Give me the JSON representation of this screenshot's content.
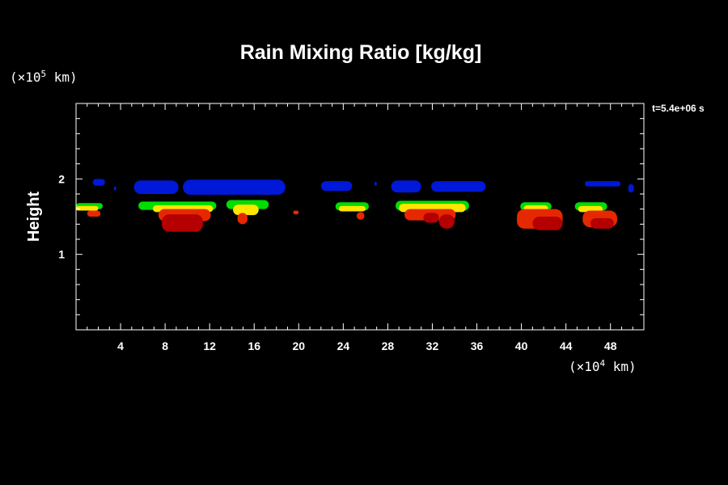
{
  "chart_data": {
    "type": "contour",
    "title": "Rain Mixing Ratio [kg/kg]",
    "ylabel": "Height",
    "x_unit": "(×10⁴ km)",
    "y_unit": "(×10⁵ km)",
    "time_label": "t=5.4e+06 s",
    "xlim": [
      0,
      51
    ],
    "ylim": [
      0,
      3
    ],
    "xticks": [
      4,
      8,
      12,
      16,
      20,
      24,
      28,
      32,
      36,
      40,
      44,
      48
    ],
    "yticks": [
      1,
      2
    ],
    "grid": false,
    "levels": [
      {
        "name": "low",
        "color": "#00dd00"
      },
      {
        "name": "mid",
        "color": "#ffe600"
      },
      {
        "name": "high",
        "color": "#e62800"
      },
      {
        "name": "max",
        "color": "#b40000"
      },
      {
        "name": "upper",
        "color": "#0018d8"
      }
    ],
    "cells": [
      {
        "level": "upper",
        "x": [
          1.5,
          2.6
        ],
        "y": [
          1.91,
          2.0
        ]
      },
      {
        "level": "upper",
        "x": [
          3.4,
          3.6
        ],
        "y": [
          1.85,
          1.9
        ]
      },
      {
        "level": "upper",
        "x": [
          5.2,
          9.2
        ],
        "y": [
          1.8,
          1.98
        ]
      },
      {
        "level": "upper",
        "x": [
          9.6,
          18.8
        ],
        "y": [
          1.79,
          1.99
        ]
      },
      {
        "level": "upper",
        "x": [
          22.0,
          24.8
        ],
        "y": [
          1.84,
          1.97
        ]
      },
      {
        "level": "upper",
        "x": [
          26.8,
          27.0
        ],
        "y": [
          1.91,
          1.96
        ]
      },
      {
        "level": "upper",
        "x": [
          28.3,
          31.0
        ],
        "y": [
          1.82,
          1.98
        ]
      },
      {
        "level": "upper",
        "x": [
          31.9,
          36.8
        ],
        "y": [
          1.83,
          1.97
        ]
      },
      {
        "level": "upper",
        "x": [
          45.7,
          48.9
        ],
        "y": [
          1.9,
          1.97
        ]
      },
      {
        "level": "upper",
        "x": [
          49.6,
          50.1
        ],
        "y": [
          1.82,
          1.93
        ]
      },
      {
        "level": "low",
        "x": [
          0.0,
          2.4
        ],
        "y": [
          1.6,
          1.68
        ]
      },
      {
        "level": "mid",
        "x": [
          0.0,
          2.0
        ],
        "y": [
          1.58,
          1.64
        ]
      },
      {
        "level": "high",
        "x": [
          1.0,
          2.2
        ],
        "y": [
          1.5,
          1.58
        ]
      },
      {
        "level": "low",
        "x": [
          5.6,
          12.6
        ],
        "y": [
          1.59,
          1.7
        ]
      },
      {
        "level": "mid",
        "x": [
          6.9,
          12.3
        ],
        "y": [
          1.56,
          1.65
        ]
      },
      {
        "level": "high",
        "x": [
          7.4,
          12.1
        ],
        "y": [
          1.44,
          1.6
        ]
      },
      {
        "level": "max",
        "x": [
          7.7,
          11.4
        ],
        "y": [
          1.3,
          1.53
        ]
      },
      {
        "level": "low",
        "x": [
          13.5,
          17.3
        ],
        "y": [
          1.6,
          1.72
        ]
      },
      {
        "level": "mid",
        "x": [
          14.1,
          16.4
        ],
        "y": [
          1.52,
          1.66
        ]
      },
      {
        "level": "high",
        "x": [
          14.5,
          15.4
        ],
        "y": [
          1.4,
          1.55
        ]
      },
      {
        "level": "high",
        "x": [
          19.5,
          20.0
        ],
        "y": [
          1.53,
          1.58
        ]
      },
      {
        "level": "low",
        "x": [
          23.3,
          26.3
        ],
        "y": [
          1.58,
          1.69
        ]
      },
      {
        "level": "mid",
        "x": [
          23.6,
          26.0
        ],
        "y": [
          1.57,
          1.64
        ]
      },
      {
        "level": "high",
        "x": [
          25.2,
          25.9
        ],
        "y": [
          1.46,
          1.56
        ]
      },
      {
        "level": "low",
        "x": [
          28.7,
          35.3
        ],
        "y": [
          1.58,
          1.71
        ]
      },
      {
        "level": "mid",
        "x": [
          29.0,
          35.0
        ],
        "y": [
          1.56,
          1.67
        ]
      },
      {
        "level": "high",
        "x": [
          29.5,
          34.1
        ],
        "y": [
          1.45,
          1.6
        ]
      },
      {
        "level": "max",
        "x": [
          31.2,
          32.6
        ],
        "y": [
          1.42,
          1.55
        ]
      },
      {
        "level": "max",
        "x": [
          32.6,
          34.0
        ],
        "y": [
          1.34,
          1.53
        ]
      },
      {
        "level": "low",
        "x": [
          39.9,
          42.7
        ],
        "y": [
          1.58,
          1.69
        ]
      },
      {
        "level": "mid",
        "x": [
          40.2,
          42.4
        ],
        "y": [
          1.56,
          1.65
        ]
      },
      {
        "level": "high",
        "x": [
          39.6,
          43.7
        ],
        "y": [
          1.34,
          1.6
        ]
      },
      {
        "level": "max",
        "x": [
          41.0,
          43.7
        ],
        "y": [
          1.32,
          1.5
        ]
      },
      {
        "level": "low",
        "x": [
          44.8,
          47.7
        ],
        "y": [
          1.58,
          1.69
        ]
      },
      {
        "level": "mid",
        "x": [
          45.1,
          47.3
        ],
        "y": [
          1.56,
          1.64
        ]
      },
      {
        "level": "high",
        "x": [
          45.5,
          48.6
        ],
        "y": [
          1.36,
          1.58
        ]
      },
      {
        "level": "max",
        "x": [
          46.2,
          48.3
        ],
        "y": [
          1.34,
          1.48
        ]
      }
    ]
  }
}
